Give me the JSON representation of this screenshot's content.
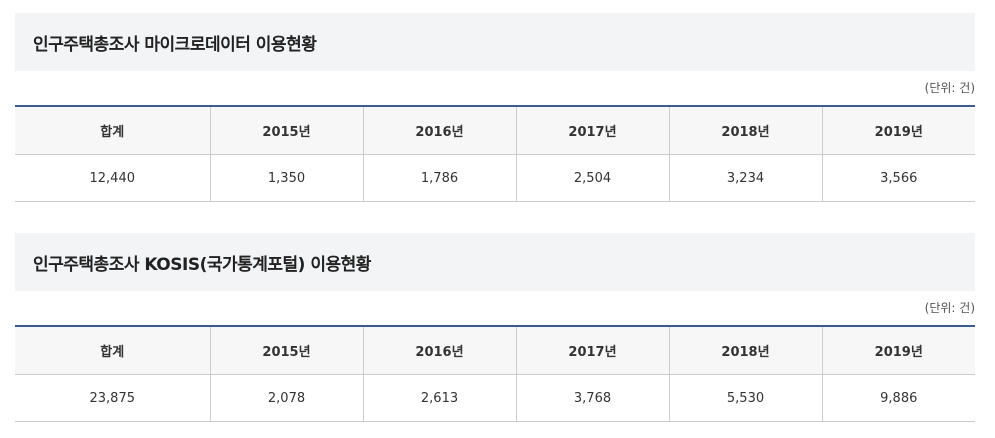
{
  "unit_label": "(단위: 건)",
  "sections": [
    {
      "title": "인구주택총조사 마이크로데이터 이용현황",
      "headers": [
        "합계",
        "2015년",
        "2016년",
        "2017년",
        "2018년",
        "2019년"
      ],
      "values": [
        "12,440",
        "1,350",
        "1,786",
        "2,504",
        "3,234",
        "3,566"
      ]
    },
    {
      "title": "인구주택총조사 KOSIS(국가통계포털) 이용현황",
      "headers": [
        "합계",
        "2015년",
        "2016년",
        "2017년",
        "2018년",
        "2019년"
      ],
      "values": [
        "23,875",
        "2,078",
        "2,613",
        "3,768",
        "5,530",
        "9,886"
      ]
    }
  ]
}
